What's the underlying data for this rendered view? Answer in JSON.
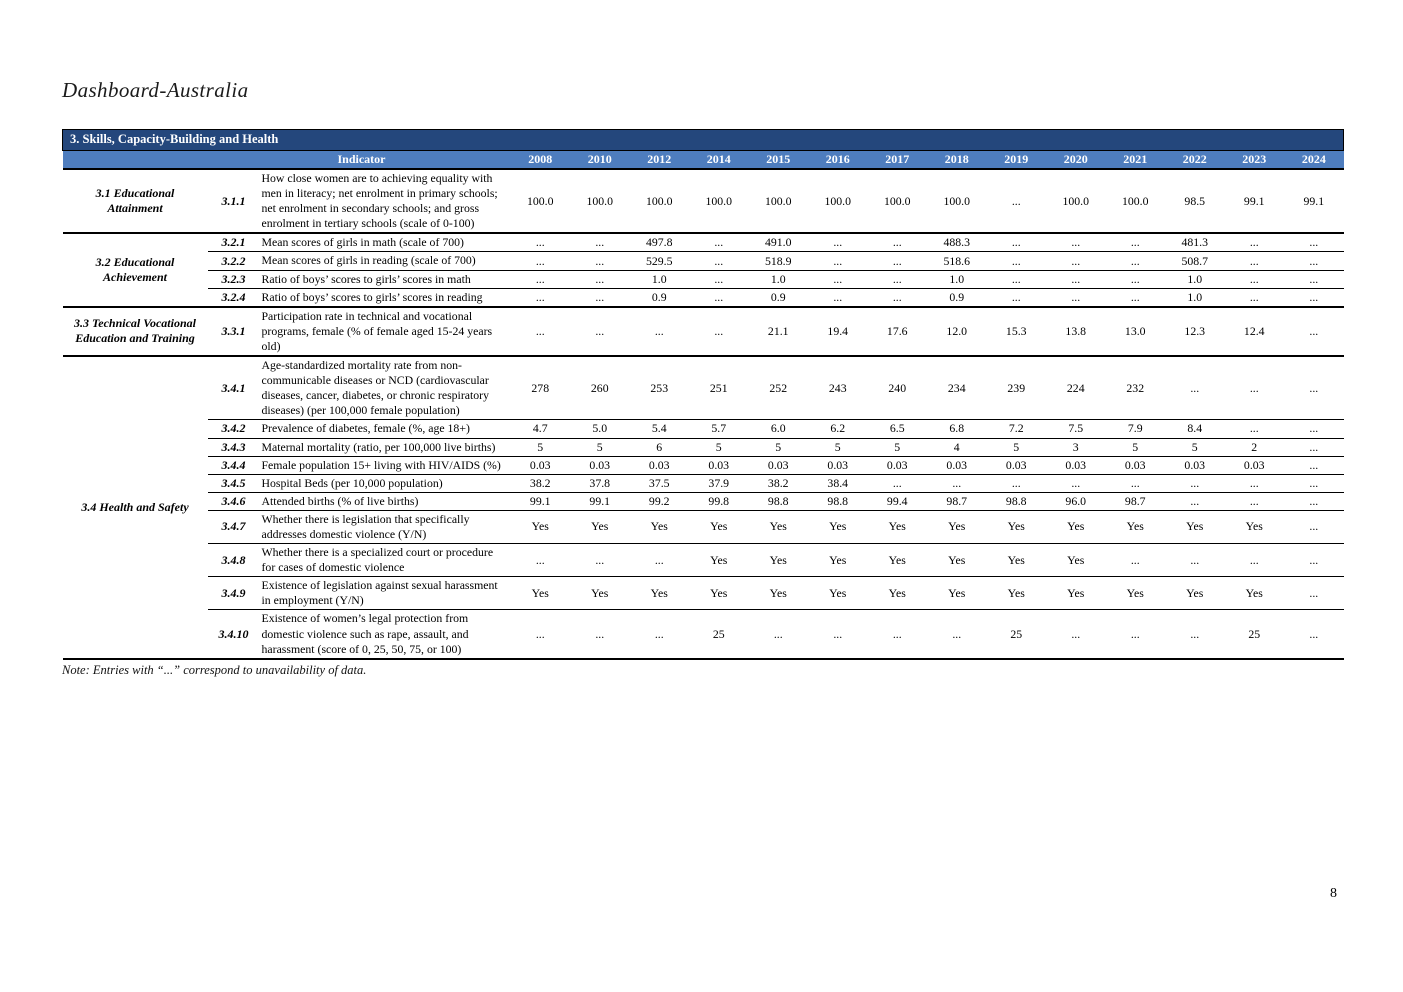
{
  "page": {
    "title": "Dashboard-Australia",
    "note": "Note: Entries with “...” correspond to unavailability of data.",
    "page_number": "8"
  },
  "colors": {
    "section_header_bg": "#24477C",
    "column_header_bg": "#4E7DBE"
  },
  "table": {
    "section_title": "3. Skills, Capacity-Building and Health",
    "indicator_header": "Indicator",
    "years": [
      "2008",
      "2010",
      "2012",
      "2014",
      "2015",
      "2016",
      "2017",
      "2018",
      "2019",
      "2020",
      "2021",
      "2022",
      "2023",
      "2024"
    ],
    "groups": [
      {
        "name": "3.1 Educational Attainment",
        "rows": [
          {
            "id": "3.1.1",
            "indicator": "How close women are to achieving equality with men in literacy; net enrolment in primary schools; net enrolment in secondary schools; and gross enrolment in tertiary schools (scale of 0-100)",
            "values": [
              "100.0",
              "100.0",
              "100.0",
              "100.0",
              "100.0",
              "100.0",
              "100.0",
              "100.0",
              "...",
              "100.0",
              "100.0",
              "98.5",
              "99.1",
              "99.1"
            ]
          }
        ]
      },
      {
        "name": "3.2 Educational Achievement",
        "rows": [
          {
            "id": "3.2.1",
            "indicator": "Mean scores of girls in math (scale of 700)",
            "values": [
              "...",
              "...",
              "497.8",
              "...",
              "491.0",
              "...",
              "...",
              "488.3",
              "...",
              "...",
              "...",
              "481.3",
              "...",
              "..."
            ]
          },
          {
            "id": "3.2.2",
            "indicator": "Mean scores of girls in reading (scale of 700)",
            "values": [
              "...",
              "...",
              "529.5",
              "...",
              "518.9",
              "...",
              "...",
              "518.6",
              "...",
              "...",
              "...",
              "508.7",
              "...",
              "..."
            ]
          },
          {
            "id": "3.2.3",
            "indicator": "Ratio of boys’ scores to girls’ scores in math",
            "values": [
              "...",
              "...",
              "1.0",
              "...",
              "1.0",
              "...",
              "...",
              "1.0",
              "...",
              "...",
              "...",
              "1.0",
              "...",
              "..."
            ]
          },
          {
            "id": "3.2.4",
            "indicator": "Ratio of boys’ scores to girls’ scores in reading",
            "values": [
              "...",
              "...",
              "0.9",
              "...",
              "0.9",
              "...",
              "...",
              "0.9",
              "...",
              "...",
              "...",
              "1.0",
              "...",
              "..."
            ]
          }
        ]
      },
      {
        "name": "3.3 Technical Vocational Education and Training",
        "rows": [
          {
            "id": "3.3.1",
            "indicator": "Participation rate in technical and vocational programs, female (% of female aged 15-24 years old)",
            "values": [
              "...",
              "...",
              "...",
              "...",
              "21.1",
              "19.4",
              "17.6",
              "12.0",
              "15.3",
              "13.8",
              "13.0",
              "12.3",
              "12.4",
              "..."
            ]
          }
        ]
      },
      {
        "name": "3.4 Health and Safety",
        "rows": [
          {
            "id": "3.4.1",
            "indicator": "Age-standardized mortality rate from non-communicable diseases or NCD (cardiovascular diseases, cancer, diabetes, or chronic respiratory diseases) (per 100,000 female population)",
            "values": [
              "278",
              "260",
              "253",
              "251",
              "252",
              "243",
              "240",
              "234",
              "239",
              "224",
              "232",
              "...",
              "...",
              "..."
            ]
          },
          {
            "id": "3.4.2",
            "indicator": "Prevalence of diabetes, female (%, age 18+)",
            "values": [
              "4.7",
              "5.0",
              "5.4",
              "5.7",
              "6.0",
              "6.2",
              "6.5",
              "6.8",
              "7.2",
              "7.5",
              "7.9",
              "8.4",
              "...",
              "..."
            ]
          },
          {
            "id": "3.4.3",
            "indicator": "Maternal mortality (ratio, per 100,000 live births)",
            "values": [
              "5",
              "5",
              "6",
              "5",
              "5",
              "5",
              "5",
              "4",
              "5",
              "3",
              "5",
              "5",
              "2",
              "..."
            ]
          },
          {
            "id": "3.4.4",
            "indicator": "Female population 15+ living with HIV/AIDS (%)",
            "values": [
              "0.03",
              "0.03",
              "0.03",
              "0.03",
              "0.03",
              "0.03",
              "0.03",
              "0.03",
              "0.03",
              "0.03",
              "0.03",
              "0.03",
              "0.03",
              "..."
            ]
          },
          {
            "id": "3.4.5",
            "indicator": "Hospital Beds (per 10,000 population)",
            "values": [
              "38.2",
              "37.8",
              "37.5",
              "37.9",
              "38.2",
              "38.4",
              "...",
              "...",
              "...",
              "...",
              "...",
              "...",
              "...",
              "..."
            ]
          },
          {
            "id": "3.4.6",
            "indicator": "Attended births (% of live births)",
            "values": [
              "99.1",
              "99.1",
              "99.2",
              "99.8",
              "98.8",
              "98.8",
              "99.4",
              "98.7",
              "98.8",
              "96.0",
              "98.7",
              "...",
              "...",
              "..."
            ]
          },
          {
            "id": "3.4.7",
            "indicator": "Whether there is legislation that specifically addresses domestic violence (Y/N)",
            "values": [
              "Yes",
              "Yes",
              "Yes",
              "Yes",
              "Yes",
              "Yes",
              "Yes",
              "Yes",
              "Yes",
              "Yes",
              "Yes",
              "Yes",
              "Yes",
              "..."
            ]
          },
          {
            "id": "3.4.8",
            "indicator": "Whether there is a specialized court or procedure for cases of domestic violence",
            "values": [
              "...",
              "...",
              "...",
              "Yes",
              "Yes",
              "Yes",
              "Yes",
              "Yes",
              "Yes",
              "Yes",
              "...",
              "...",
              "...",
              "..."
            ]
          },
          {
            "id": "3.4.9",
            "indicator": "Existence of legislation against sexual harassment in employment (Y/N)",
            "values": [
              "Yes",
              "Yes",
              "Yes",
              "Yes",
              "Yes",
              "Yes",
              "Yes",
              "Yes",
              "Yes",
              "Yes",
              "Yes",
              "Yes",
              "Yes",
              "..."
            ]
          },
          {
            "id": "3.4.10",
            "indicator": "Existence of women’s legal protection from domestic violence such as rape, assault, and harassment (score of 0, 25, 50, 75, or 100)",
            "values": [
              "...",
              "...",
              "...",
              "25",
              "...",
              "...",
              "...",
              "...",
              "25",
              "...",
              "...",
              "...",
              "25",
              "..."
            ]
          }
        ]
      }
    ]
  }
}
